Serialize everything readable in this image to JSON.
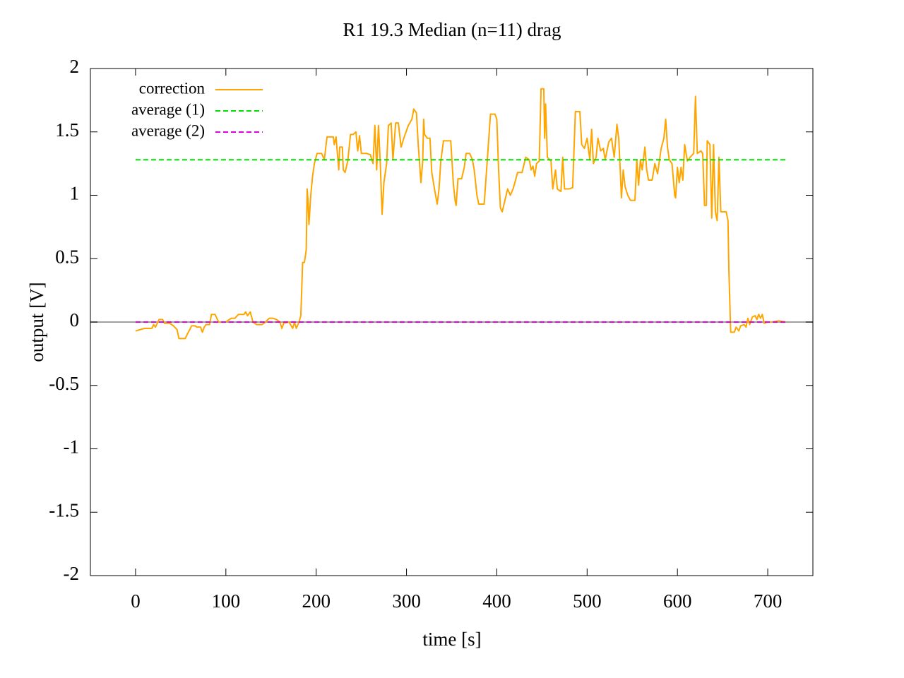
{
  "chart_data": {
    "type": "line",
    "title": "R1 19.3  Median (n=11) drag",
    "x_label": "time [s]",
    "y_label": "output [V]",
    "xlim": [
      -50,
      750
    ],
    "ylim": [
      -2,
      2
    ],
    "xticks": [
      0,
      100,
      200,
      300,
      400,
      500,
      600,
      700
    ],
    "yticks": [
      -2,
      -1.5,
      -1,
      -0.5,
      0,
      0.5,
      1,
      1.5,
      2
    ],
    "zeroaxis": true,
    "grid": false,
    "legend": "top-left",
    "series": [
      {
        "name": "correction",
        "color": "#ffa500",
        "dashed": false,
        "x": [
          0,
          5,
          10,
          18,
          20,
          22,
          24,
          26,
          30,
          32,
          38,
          42,
          46,
          48,
          55,
          57,
          60,
          62,
          66,
          68,
          72,
          74,
          76,
          78,
          82,
          84,
          88,
          90,
          92,
          100,
          106,
          110,
          114,
          120,
          122,
          124,
          127,
          130,
          134,
          140,
          144,
          148,
          152,
          156,
          160,
          162,
          164,
          170,
          174,
          176,
          178,
          181,
          183,
          185,
          187,
          189,
          190,
          191,
          192,
          194,
          196,
          198,
          201,
          206,
          209,
          212,
          219,
          220,
          222,
          225,
          226,
          229,
          230,
          232,
          235,
          238,
          241,
          244,
          246,
          248,
          250,
          256,
          260,
          263,
          265,
          267,
          269,
          271,
          273,
          275,
          278,
          280,
          283,
          285,
          288,
          291,
          294,
          297,
          302,
          306,
          308,
          311,
          313,
          316,
          318,
          319,
          320,
          323,
          326,
          328,
          331,
          334,
          336,
          338,
          341,
          349,
          352,
          354,
          355,
          357,
          361,
          364,
          366,
          370,
          373,
          375,
          378,
          380,
          386,
          389,
          393,
          398,
          400,
          402,
          404,
          406,
          408,
          412,
          415,
          418,
          420,
          423,
          428,
          432,
          436,
          438,
          440,
          442,
          444,
          447,
          449,
          452,
          453,
          454,
          456,
          460,
          462,
          465,
          467,
          471,
          473,
          475,
          480,
          484,
          487,
          492,
          494,
          497,
          500,
          503,
          505,
          507,
          510,
          512,
          515,
          518,
          520,
          524,
          527,
          530,
          533,
          535,
          537,
          538,
          540,
          542,
          545,
          548,
          553,
          555,
          557,
          559,
          561,
          564,
          566,
          568,
          572,
          575,
          578,
          582,
          585,
          587,
          589,
          591,
          594,
          597,
          598,
          600,
          602,
          604,
          606,
          608,
          611,
          614,
          618,
          620,
          622,
          626,
          628,
          630,
          632,
          633,
          636,
          638,
          640,
          642,
          644,
          646,
          648,
          654,
          656,
          657,
          659,
          663,
          665,
          668,
          670,
          674,
          676,
          678,
          680,
          683,
          686,
          688,
          690,
          692,
          694,
          696,
          700,
          705,
          712,
          720
        ],
        "values": [
          -0.07,
          -0.06,
          -0.05,
          -0.05,
          -0.02,
          -0.04,
          -0.01,
          0.02,
          0.02,
          -0.01,
          -0.01,
          -0.03,
          -0.06,
          -0.13,
          -0.13,
          -0.1,
          -0.06,
          -0.03,
          -0.03,
          -0.04,
          -0.04,
          -0.08,
          -0.04,
          -0.02,
          -0.02,
          0.06,
          0.06,
          0.03,
          0.0,
          0.0,
          0.03,
          0.03,
          0.06,
          0.06,
          0.08,
          0.05,
          0.08,
          0.0,
          -0.02,
          -0.02,
          0.0,
          0.03,
          0.03,
          0.02,
          0.0,
          -0.05,
          -0.01,
          0.0,
          -0.05,
          0.0,
          -0.05,
          0.0,
          0.05,
          0.47,
          0.47,
          0.57,
          1.05,
          0.95,
          0.77,
          1.0,
          1.15,
          1.25,
          1.33,
          1.33,
          1.28,
          1.46,
          1.46,
          1.4,
          1.46,
          1.2,
          1.38,
          1.38,
          1.2,
          1.18,
          1.27,
          1.48,
          1.48,
          1.5,
          1.35,
          1.47,
          1.33,
          1.33,
          1.32,
          1.25,
          1.55,
          1.2,
          1.55,
          1.25,
          0.85,
          1.1,
          1.25,
          1.55,
          1.57,
          1.28,
          1.57,
          1.57,
          1.38,
          1.45,
          1.55,
          1.6,
          1.68,
          1.65,
          1.4,
          1.1,
          1.27,
          1.6,
          1.48,
          1.45,
          1.45,
          1.18,
          1.05,
          0.93,
          1.05,
          1.27,
          1.43,
          1.43,
          1.08,
          0.95,
          0.92,
          1.13,
          1.13,
          1.22,
          1.33,
          1.33,
          1.28,
          1.2,
          1.0,
          0.93,
          0.93,
          1.23,
          1.64,
          1.64,
          1.6,
          1.2,
          0.9,
          0.87,
          0.93,
          1.05,
          1.0,
          1.05,
          1.1,
          1.18,
          1.18,
          1.3,
          1.28,
          1.2,
          1.23,
          1.15,
          1.25,
          1.27,
          1.84,
          1.84,
          1.45,
          1.72,
          1.3,
          1.27,
          1.05,
          1.2,
          1.05,
          1.03,
          1.3,
          1.05,
          1.05,
          1.06,
          1.66,
          1.66,
          1.4,
          1.37,
          1.45,
          1.28,
          1.52,
          1.25,
          1.3,
          1.45,
          1.35,
          1.37,
          1.28,
          1.42,
          1.45,
          1.3,
          1.56,
          1.45,
          1.15,
          0.98,
          1.2,
          1.07,
          1.0,
          0.96,
          0.96,
          1.28,
          1.08,
          1.28,
          1.2,
          1.38,
          1.2,
          1.12,
          1.12,
          1.25,
          1.17,
          1.37,
          1.45,
          1.6,
          1.38,
          1.28,
          1.25,
          1.0,
          0.98,
          1.22,
          1.1,
          1.22,
          1.12,
          1.4,
          1.27,
          1.3,
          1.33,
          1.78,
          1.33,
          1.35,
          1.33,
          0.92,
          0.92,
          1.43,
          1.4,
          0.82,
          1.4,
          0.87,
          0.8,
          1.3,
          0.87,
          0.87,
          0.8,
          0.4,
          -0.08,
          -0.08,
          -0.04,
          -0.07,
          -0.03,
          -0.02,
          -0.04,
          0.03,
          -0.02,
          0.04,
          0.05,
          0.02,
          0.06,
          0.03,
          0.06,
          -0.01,
          0.0,
          0.0,
          0.01,
          0.0
        ]
      },
      {
        "name": "average (1)",
        "color": "#00e000",
        "dashed": true,
        "x": [
          0,
          720
        ],
        "values": [
          1.28,
          1.28
        ]
      },
      {
        "name": "average (2)",
        "color": "#e000e0",
        "dashed": true,
        "x": [
          0,
          720
        ],
        "values": [
          0,
          0
        ]
      }
    ]
  }
}
